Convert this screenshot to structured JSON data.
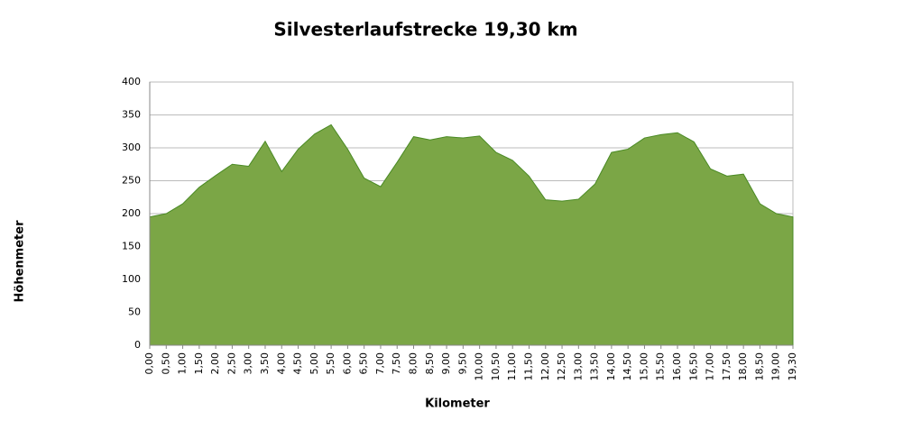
{
  "chart_data": {
    "type": "area",
    "title": "Silvesterlaufstrecke 19,30 km",
    "x_label": "Kilometer",
    "y_label": "Höhenmeter",
    "categories": [
      "0,00",
      "0,50",
      "1,00",
      "1,50",
      "2,00",
      "2,50",
      "3,00",
      "3,50",
      "4,00",
      "4,50",
      "5,00",
      "5,50",
      "6,00",
      "6,50",
      "7,00",
      "7,50",
      "8,00",
      "8,50",
      "9,00",
      "9,50",
      "10,00",
      "10,50",
      "11,00",
      "11,50",
      "12,00",
      "12,50",
      "13,00",
      "13,50",
      "14,00",
      "14,50",
      "15,00",
      "15,50",
      "16,00",
      "16,50",
      "17,00",
      "17,50",
      "18,00",
      "18,50",
      "19,00",
      "19,30"
    ],
    "values": [
      195,
      200,
      215,
      240,
      258,
      275,
      272,
      310,
      264,
      298,
      321,
      335,
      298,
      254,
      241,
      278,
      317,
      312,
      317,
      315,
      318,
      293,
      281,
      257,
      221,
      219,
      222,
      245,
      293,
      298,
      315,
      320,
      323,
      309,
      268,
      257,
      260,
      215,
      200,
      195
    ],
    "color": "#7ba646",
    "line_color": "#4a8a24",
    "ylim": [
      0,
      400
    ],
    "yticks": [
      0,
      50,
      100,
      150,
      200,
      250,
      300,
      350,
      400
    ],
    "grid": true
  }
}
